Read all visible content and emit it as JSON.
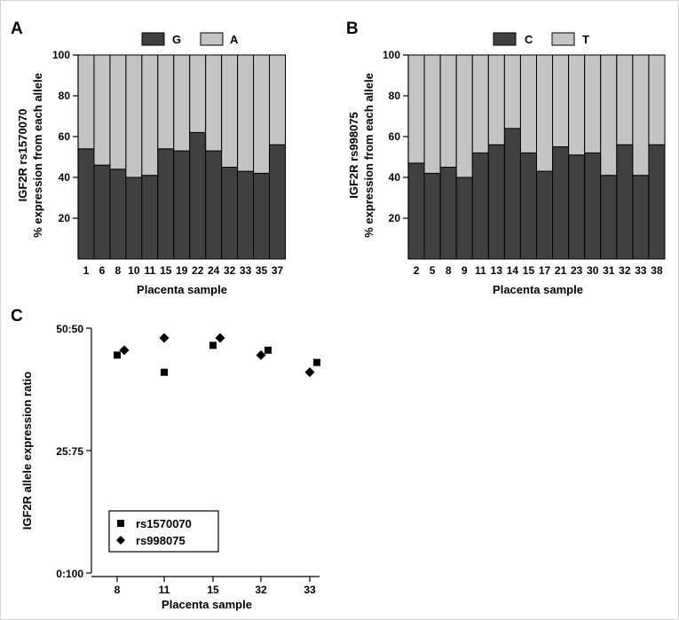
{
  "chart_data": [
    {
      "panel": "A",
      "type": "bar",
      "stacked": true,
      "categories": [
        "1",
        "6",
        "8",
        "10",
        "11",
        "15",
        "19",
        "22",
        "24",
        "32",
        "33",
        "35",
        "37"
      ],
      "series": [
        {
          "name": "G",
          "color": "#404040",
          "values": [
            54,
            46,
            44,
            40,
            41,
            54,
            53,
            62,
            53,
            45,
            43,
            42,
            56
          ]
        },
        {
          "name": "A",
          "color": "#c4c4c4",
          "values": [
            46,
            54,
            56,
            60,
            59,
            46,
            47,
            38,
            47,
            55,
            57,
            58,
            44
          ]
        }
      ],
      "xlabel": "Placenta sample",
      "ylabel_line1": "IGF2R rs1570070",
      "ylabel_line2": "% expression from each allele",
      "yticks": [
        "20",
        "40",
        "60",
        "80",
        "100"
      ],
      "ylim": [
        0,
        100
      ]
    },
    {
      "panel": "B",
      "type": "bar",
      "stacked": true,
      "categories": [
        "2",
        "5",
        "8",
        "9",
        "11",
        "13",
        "14",
        "15",
        "17",
        "21",
        "23",
        "30",
        "31",
        "32",
        "33",
        "38"
      ],
      "series": [
        {
          "name": "C",
          "color": "#404040",
          "values": [
            47,
            42,
            45,
            40,
            52,
            56,
            64,
            52,
            43,
            55,
            51,
            52,
            41,
            56,
            41,
            56
          ]
        },
        {
          "name": "T",
          "color": "#c4c4c4",
          "values": [
            53,
            58,
            55,
            60,
            48,
            44,
            36,
            48,
            57,
            45,
            49,
            48,
            59,
            44,
            59,
            44
          ]
        }
      ],
      "xlabel": "Placenta sample",
      "ylabel_line1": "IGF2R rs998075",
      "ylabel_line2": "% expression from each allele",
      "yticks": [
        "20",
        "40",
        "60",
        "80",
        "100"
      ],
      "ylim": [
        0,
        100
      ]
    },
    {
      "panel": "C",
      "type": "scatter",
      "categories": [
        "8",
        "11",
        "15",
        "32",
        "33"
      ],
      "series": [
        {
          "name": "rs1570070",
          "marker": "square",
          "values": [
            44.5,
            41,
            46.5,
            45.5,
            43
          ]
        },
        {
          "name": "rs998075",
          "marker": "diamond",
          "values": [
            45.5,
            48,
            48,
            44.5,
            41
          ]
        }
      ],
      "xlabel": "Placenta sample",
      "ylabel": "IGF2R  allele expression ratio",
      "yticks": [
        "0:100",
        "25:75",
        "50:50"
      ],
      "ylim": [
        0,
        50
      ]
    }
  ]
}
